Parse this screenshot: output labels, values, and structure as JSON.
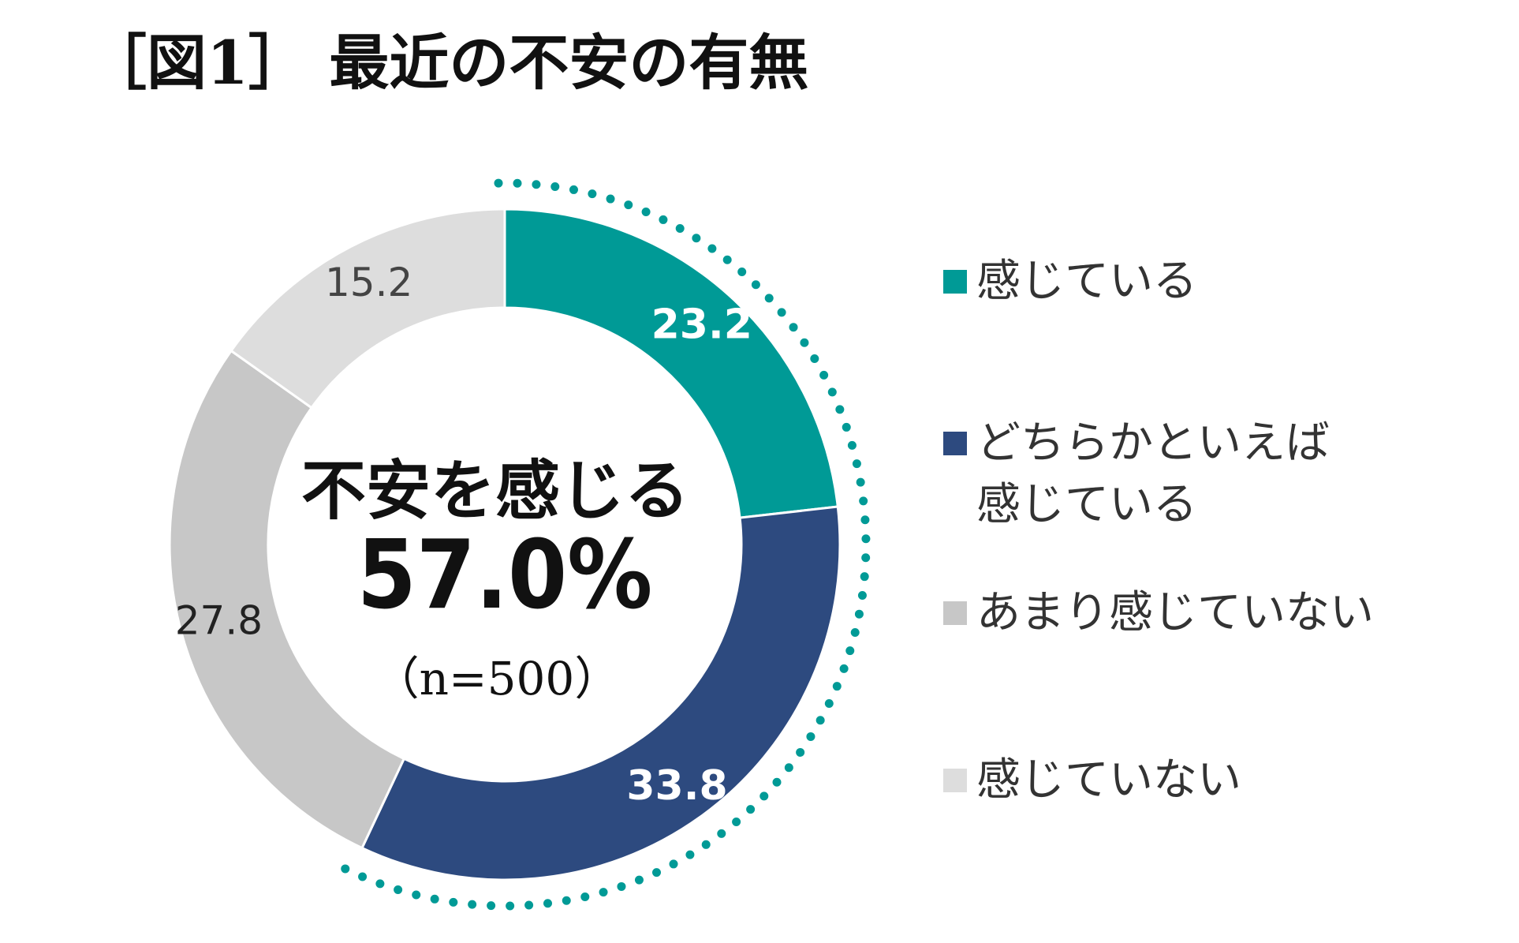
{
  "chart_data": {
    "type": "pie",
    "title": "［図1］ 最近の不安の有無",
    "categories": [
      "感じている",
      "どちらかといえば\n感じている",
      "あまり感じていない",
      "感じていない"
    ],
    "values": [
      23.2,
      33.8,
      27.8,
      15.2
    ],
    "colors": [
      "#009a96",
      "#2d4a7f",
      "#c7c7c7",
      "#dddddd"
    ],
    "label_colors": [
      "#ffffff",
      "#ffffff",
      "#222222",
      "#444444"
    ],
    "center_text": {
      "headline": "不安を感じる",
      "value": "57.0%",
      "sample": "（n=500）"
    },
    "highlight": {
      "style": "dotted arc",
      "color": "#009a96",
      "covers_categories": [
        "感じている",
        "どちらかといえば\n感じている"
      ]
    },
    "legend_position": "right"
  }
}
